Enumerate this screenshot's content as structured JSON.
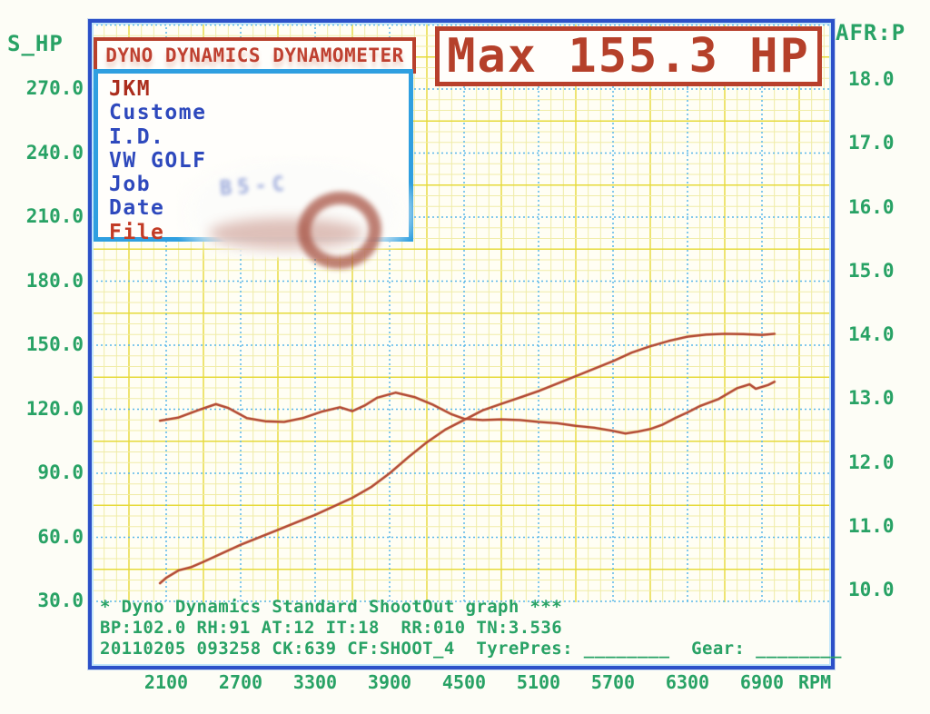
{
  "header": {
    "brand_title": "DYNO DYNAMICS DYNAMOMETER",
    "max_label": "Max 155.3 HP",
    "info_lines": [
      {
        "label": "JKM",
        "color": "#ab2d1d"
      },
      {
        "label": "Custome",
        "color": "#2e49bd"
      },
      {
        "label": "I.D.",
        "color": "#2e49bd"
      },
      {
        "label": "VW GOLF",
        "color": "#2e49bd"
      },
      {
        "label": "Job",
        "color": "#2e49bd"
      },
      {
        "label": "Date",
        "color": "#2e49bd"
      },
      {
        "label": "File",
        "color": "#c23b25"
      }
    ]
  },
  "watermark": {
    "text": "B5-C"
  },
  "axes": {
    "left_title": "S_HP",
    "right_title": "AFR:P",
    "x_unit": "RPM"
  },
  "footer": {
    "lines": [
      "* Dyno Dynamics Standard ShootOut graph ***",
      "BP:102.0 RH:91 AT:12 IT:18  RR:010 TN:3.536",
      "20110205 093258 CK:639 CF:SHOOT_4  TyrePres: ________  Gear: ________"
    ]
  },
  "colors": {
    "axis_text_green": "#28a265",
    "brand_red": "#bf4030",
    "info_blue": "#2e49bd",
    "curve_red": "#b04532",
    "grid_minor_yellow": "#f0eca8",
    "grid_major_yellow": "#e6da3a",
    "grid_blue_dashed": "#5ab7e9",
    "frame_blue": "#2c50c8"
  },
  "chart_data": {
    "type": "line",
    "title": "Max 155.3 HP",
    "grid": true,
    "x_axis": {
      "label": "RPM",
      "ticks": [
        2100,
        2700,
        3300,
        3900,
        4500,
        5100,
        5700,
        6300,
        6900
      ],
      "range": [
        1500,
        7450
      ]
    },
    "y_axis_left": {
      "label": "S_HP",
      "ticks": [
        270,
        240,
        210,
        180,
        150,
        120,
        90,
        60,
        30
      ],
      "range": [
        29.5,
        301
      ]
    },
    "y_axis_right": {
      "label": "AFR:P",
      "ticks": [
        18,
        17,
        16,
        15,
        14,
        13,
        12,
        11,
        10
      ],
      "range": [
        9.8,
        18.9
      ]
    },
    "annotations": {
      "max_power_hp": 155.3
    },
    "series": [
      {
        "name": "Power (S_HP)",
        "axis": "left",
        "color": "#b04532",
        "points": [
          [
            2050,
            38.5
          ],
          [
            2100,
            41
          ],
          [
            2200,
            44.5
          ],
          [
            2300,
            46
          ],
          [
            2400,
            48.5
          ],
          [
            2550,
            52.5
          ],
          [
            2700,
            56.5
          ],
          [
            2850,
            60
          ],
          [
            3000,
            63.5
          ],
          [
            3150,
            67
          ],
          [
            3300,
            70.5
          ],
          [
            3450,
            74.5
          ],
          [
            3600,
            78.5
          ],
          [
            3750,
            83.5
          ],
          [
            3900,
            90
          ],
          [
            4050,
            97.5
          ],
          [
            4200,
            104.5
          ],
          [
            4350,
            110.5
          ],
          [
            4500,
            115
          ],
          [
            4650,
            119.5
          ],
          [
            4800,
            122.5
          ],
          [
            4950,
            125.5
          ],
          [
            5100,
            128.5
          ],
          [
            5250,
            132
          ],
          [
            5400,
            135.5
          ],
          [
            5550,
            139
          ],
          [
            5700,
            142.5
          ],
          [
            5850,
            146.5
          ],
          [
            6000,
            149.5
          ],
          [
            6150,
            152
          ],
          [
            6300,
            154
          ],
          [
            6450,
            155
          ],
          [
            6600,
            155.3
          ],
          [
            6750,
            155.2
          ],
          [
            6900,
            154.8
          ],
          [
            7000,
            155.3
          ]
        ]
      },
      {
        "name": "AFR:P",
        "axis": "right",
        "color": "#b04532",
        "points": [
          [
            2050,
            12.66
          ],
          [
            2200,
            12.71
          ],
          [
            2350,
            12.82
          ],
          [
            2500,
            12.92
          ],
          [
            2600,
            12.86
          ],
          [
            2750,
            12.7
          ],
          [
            2900,
            12.65
          ],
          [
            3050,
            12.64
          ],
          [
            3200,
            12.7
          ],
          [
            3350,
            12.8
          ],
          [
            3500,
            12.87
          ],
          [
            3600,
            12.81
          ],
          [
            3700,
            12.9
          ],
          [
            3800,
            13.02
          ],
          [
            3950,
            13.1
          ],
          [
            4100,
            13.03
          ],
          [
            4250,
            12.91
          ],
          [
            4400,
            12.76
          ],
          [
            4500,
            12.69
          ],
          [
            4650,
            12.67
          ],
          [
            4800,
            12.68
          ],
          [
            4950,
            12.67
          ],
          [
            5100,
            12.64
          ],
          [
            5250,
            12.62
          ],
          [
            5400,
            12.58
          ],
          [
            5550,
            12.55
          ],
          [
            5700,
            12.5
          ],
          [
            5800,
            12.46
          ],
          [
            5900,
            12.49
          ],
          [
            6000,
            12.53
          ],
          [
            6100,
            12.6
          ],
          [
            6200,
            12.7
          ],
          [
            6300,
            12.79
          ],
          [
            6400,
            12.89
          ],
          [
            6550,
            13.0
          ],
          [
            6700,
            13.17
          ],
          [
            6800,
            13.23
          ],
          [
            6850,
            13.16
          ],
          [
            6950,
            13.22
          ],
          [
            7000,
            13.27
          ]
        ]
      }
    ]
  }
}
